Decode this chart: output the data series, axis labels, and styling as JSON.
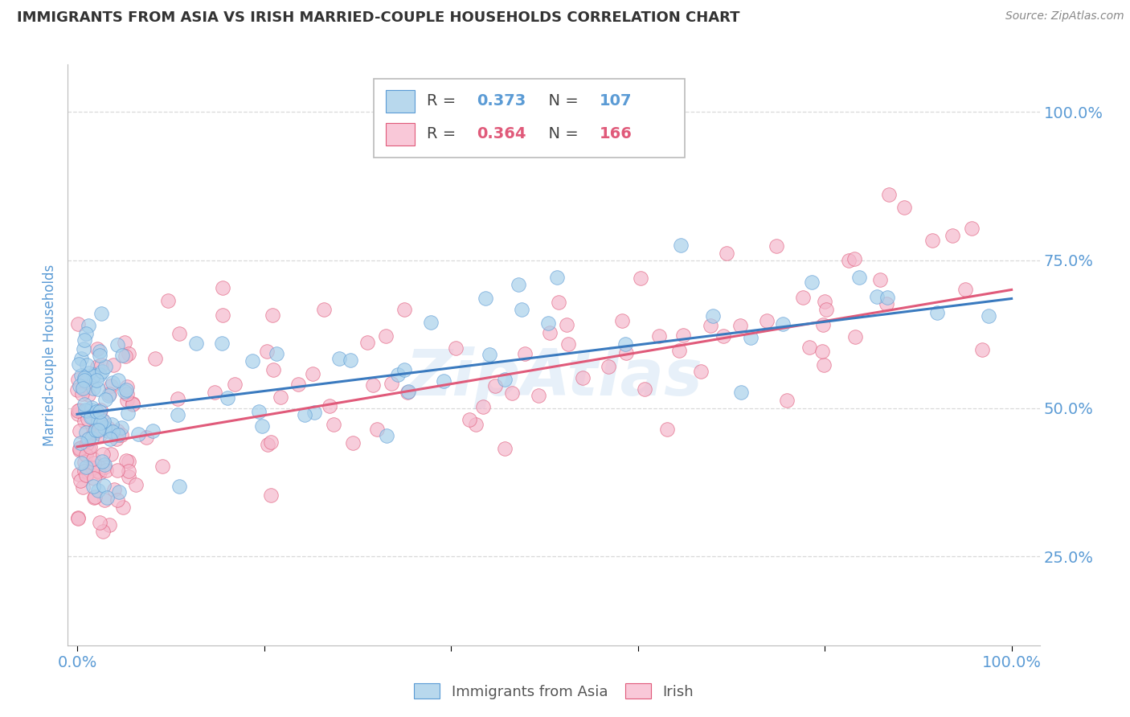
{
  "title": "IMMIGRANTS FROM ASIA VS IRISH MARRIED-COUPLE HOUSEHOLDS CORRELATION CHART",
  "source": "Source: ZipAtlas.com",
  "ylabel": "Married-couple Households",
  "ytick_vals": [
    0.25,
    0.5,
    0.75,
    1.0
  ],
  "ytick_labels": [
    "25.0%",
    "50.0%",
    "75.0%",
    "100.0%"
  ],
  "xtick_vals": [
    0.0,
    0.2,
    0.4,
    0.6,
    0.8,
    1.0
  ],
  "xtick_labels": [
    "0.0%",
    "",
    "",
    "",
    "",
    "100.0%"
  ],
  "xlim": [
    -0.01,
    1.03
  ],
  "ylim": [
    0.1,
    1.08
  ],
  "series1": {
    "name": "Immigrants from Asia",
    "color": "#a8d0eb",
    "edge_color": "#5b9bd5",
    "R": 0.373,
    "N": 107,
    "reg_intercept": 0.49,
    "reg_slope": 0.195
  },
  "series2": {
    "name": "Irish",
    "color": "#f4b8cc",
    "edge_color": "#e05a7a",
    "R": 0.364,
    "N": 166,
    "reg_intercept": 0.435,
    "reg_slope": 0.265
  },
  "watermark": "ZipAtlas",
  "background_color": "#ffffff",
  "grid_color": "#d0d0d0",
  "title_color": "#333333",
  "axis_label_color": "#5b9bd5",
  "tick_color": "#5b9bd5",
  "legend_box_color_blue": "#b8d8ed",
  "legend_box_color_pink": "#f9c8d8",
  "legend_text_color_blue": "#5b9bd5",
  "legend_text_color_pink": "#e05a7a",
  "regression_color_blue": "#3a7abf",
  "regression_color_pink": "#e05a7a"
}
